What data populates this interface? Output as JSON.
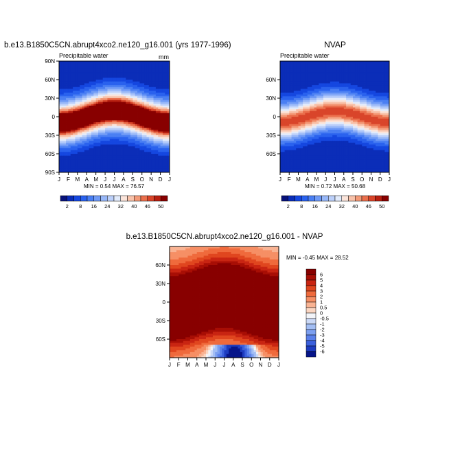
{
  "chart_data": [
    {
      "type": "heatmap",
      "title": "b.e13.B1850C5CN.abrupt4xco2.ne120_g16.001 (yrs 1977-1996)",
      "subtitle_left": "Precipitable water",
      "subtitle_right": "mm",
      "stats": "MIN =   0.54 MAX =   76.57",
      "x_ticks": [
        "J",
        "F",
        "M",
        "A",
        "M",
        "J",
        "J",
        "A",
        "S",
        "O",
        "N",
        "D",
        "J"
      ],
      "y_ticks": [
        "90N",
        "60N",
        "30N",
        "0",
        "30S",
        "60S",
        "90S"
      ],
      "ylim": [
        -90,
        90
      ],
      "colorbar_labels": [
        "2",
        "8",
        "16",
        "24",
        "32",
        "40",
        "46",
        "50"
      ]
    },
    {
      "type": "heatmap",
      "title": "NVAP",
      "subtitle_left": "Precipitable water",
      "stats": "MIN =   0.72 MAX =   50.68",
      "x_ticks": [
        "J",
        "F",
        "M",
        "A",
        "M",
        "J",
        "J",
        "A",
        "S",
        "O",
        "N",
        "D",
        "J"
      ],
      "y_ticks": [
        "60N",
        "30N",
        "0",
        "30S",
        "60S"
      ],
      "ylim": [
        -90,
        90
      ],
      "colorbar_labels": [
        "2",
        "8",
        "16",
        "24",
        "32",
        "40",
        "46",
        "50"
      ]
    },
    {
      "type": "heatmap",
      "title": "b.e13.B1850C5CN.abrupt4xco2.ne120_g16.001 - NVAP",
      "stats": "MIN =  -0.45 MAX =  28.52",
      "x_ticks": [
        "J",
        "F",
        "M",
        "A",
        "M",
        "J",
        "J",
        "A",
        "S",
        "O",
        "N",
        "D",
        "J"
      ],
      "y_ticks": [
        "60N",
        "30N",
        "0",
        "30S",
        "60S"
      ],
      "ylim": [
        -90,
        90
      ],
      "colorbar_labels": [
        "6",
        "5",
        "4",
        "3",
        "2",
        "1",
        "0.5",
        "0",
        "-0.5",
        "-1",
        "-2",
        "-3",
        "-4",
        "-5",
        "-6"
      ]
    }
  ],
  "palettes": {
    "pw": [
      "#08127a",
      "#0b2db8",
      "#1547e0",
      "#2a62ee",
      "#4a7ff3",
      "#6f9af6",
      "#97b7f8",
      "#bcd0fa",
      "#e2ebfb",
      "#fbe4da",
      "#f8c2aa",
      "#f39a78",
      "#ea6f4c",
      "#d9452a",
      "#b71f10",
      "#880000"
    ],
    "diff": [
      "#880000",
      "#a80e05",
      "#c92512",
      "#e0461f",
      "#ef6a3c",
      "#f68f65",
      "#f9b393",
      "#fbd6c2",
      "#f3f4f8",
      "#cbd9f7",
      "#a3bef4",
      "#7c9ff0",
      "#5a80ea",
      "#3b60dd",
      "#1d3cc0",
      "#06158a"
    ]
  }
}
